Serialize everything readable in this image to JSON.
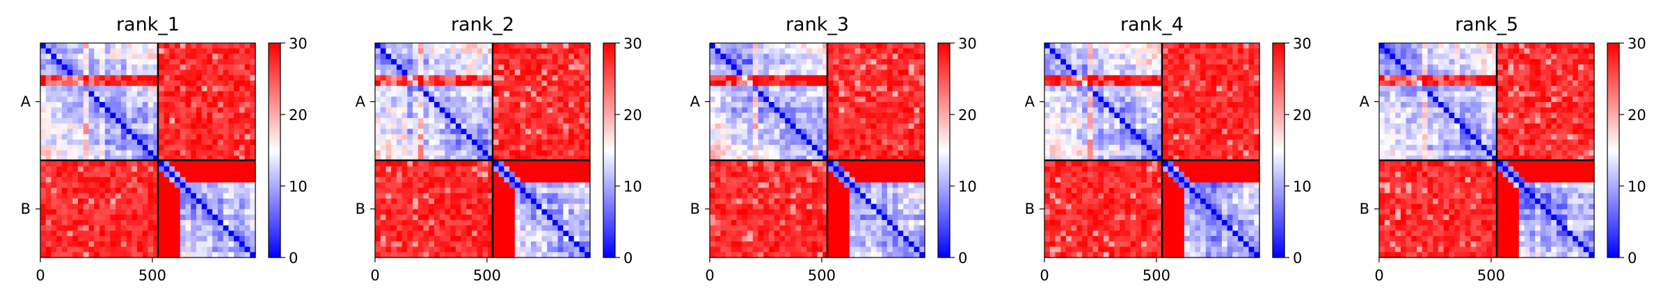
{
  "chart_data": [
    {
      "type": "heatmap",
      "title": "rank_1",
      "xlabel": "",
      "ylabel": "",
      "x_ticks": [
        0,
        500
      ],
      "xlim": [
        0,
        960
      ],
      "y_tick_labels": [
        "A",
        "B"
      ],
      "chain_boundary": 525,
      "colorbar": {
        "vmin": 0,
        "vmax": 30,
        "ticks": [
          0,
          10,
          20,
          30
        ],
        "colormap": "bwr"
      }
    },
    {
      "type": "heatmap",
      "title": "rank_2",
      "xlabel": "",
      "ylabel": "",
      "x_ticks": [
        0,
        500
      ],
      "xlim": [
        0,
        960
      ],
      "y_tick_labels": [
        "A",
        "B"
      ],
      "chain_boundary": 525,
      "colorbar": {
        "vmin": 0,
        "vmax": 30,
        "ticks": [
          0,
          10,
          20,
          30
        ],
        "colormap": "bwr"
      }
    },
    {
      "type": "heatmap",
      "title": "rank_3",
      "xlabel": "",
      "ylabel": "",
      "x_ticks": [
        0,
        500
      ],
      "xlim": [
        0,
        960
      ],
      "y_tick_labels": [
        "A",
        "B"
      ],
      "chain_boundary": 525,
      "colorbar": {
        "vmin": 0,
        "vmax": 30,
        "ticks": [
          0,
          10,
          20,
          30
        ],
        "colormap": "bwr"
      }
    },
    {
      "type": "heatmap",
      "title": "rank_4",
      "xlabel": "",
      "ylabel": "",
      "x_ticks": [
        0,
        500
      ],
      "xlim": [
        0,
        960
      ],
      "y_tick_labels": [
        "A",
        "B"
      ],
      "chain_boundary": 525,
      "colorbar": {
        "vmin": 0,
        "vmax": 30,
        "ticks": [
          0,
          10,
          20,
          30
        ],
        "colormap": "bwr"
      }
    },
    {
      "type": "heatmap",
      "title": "rank_5",
      "xlabel": "",
      "ylabel": "",
      "x_ticks": [
        0,
        500
      ],
      "xlim": [
        0,
        960
      ],
      "y_tick_labels": [
        "A",
        "B"
      ],
      "chain_boundary": 525,
      "colorbar": {
        "vmin": 0,
        "vmax": 30,
        "ticks": [
          0,
          10,
          20,
          30
        ],
        "colormap": "bwr"
      }
    }
  ]
}
